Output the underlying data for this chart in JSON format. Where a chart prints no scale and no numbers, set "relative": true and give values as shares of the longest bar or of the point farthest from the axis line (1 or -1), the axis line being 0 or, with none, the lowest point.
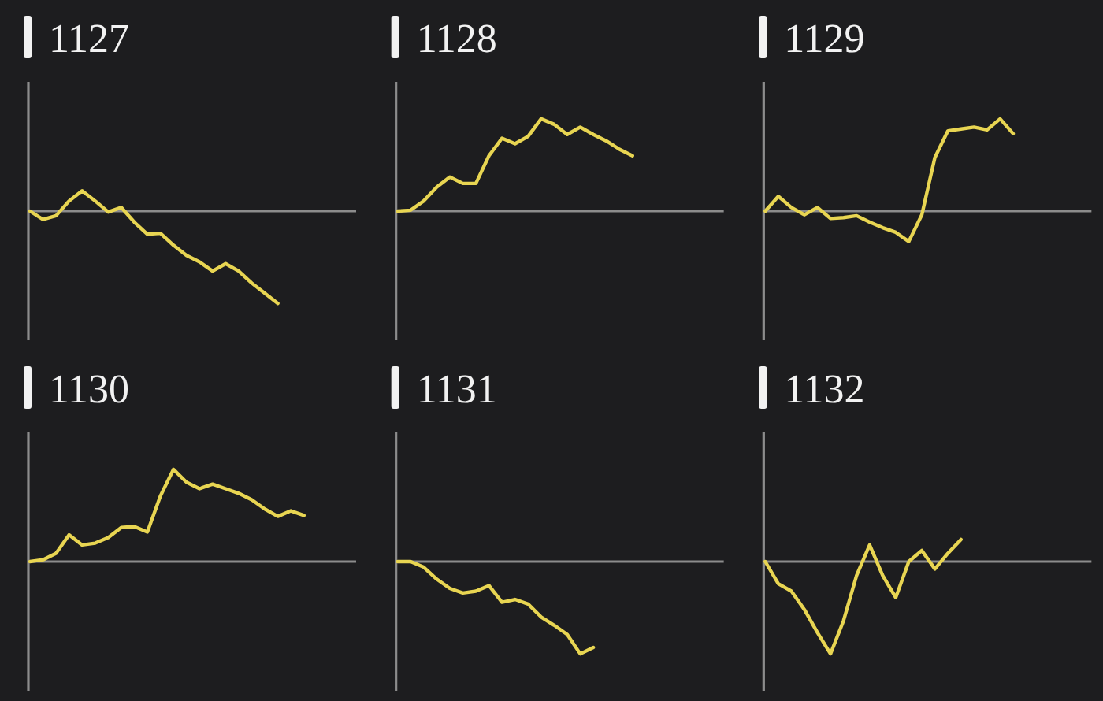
{
  "chart_data": [
    {
      "type": "line",
      "title": "1127",
      "relative": true,
      "categories": [
        null,
        null,
        null,
        null,
        null,
        null,
        null,
        null,
        null,
        null,
        null,
        null,
        null,
        null,
        null,
        null,
        null,
        null,
        null,
        null,
        null,
        null,
        null,
        null,
        null,
        null
      ],
      "color": "#e8d552",
      "values": [
        0,
        -0.09,
        -0.05,
        0.11,
        0.22,
        0.11,
        -0.01,
        0.04,
        -0.12,
        -0.25,
        -0.24,
        -0.37,
        -0.48,
        -0.55,
        -0.65,
        -0.57,
        -0.65,
        -0.78,
        -0.89,
        -1,
        null,
        null,
        null,
        null,
        null,
        null
      ]
    },
    {
      "type": "line",
      "title": "1128",
      "relative": true,
      "categories": [
        null,
        null,
        null,
        null,
        null,
        null,
        null,
        null,
        null,
        null,
        null,
        null,
        null,
        null,
        null,
        null,
        null,
        null,
        null,
        null,
        null,
        null,
        null,
        null,
        null,
        null
      ],
      "color": "#e8d552",
      "values": [
        0,
        0.01,
        0.11,
        0.26,
        0.37,
        0.3,
        0.3,
        0.6,
        0.79,
        0.73,
        0.81,
        1,
        0.94,
        0.83,
        0.91,
        0.83,
        0.76,
        0.67,
        0.6,
        null,
        null,
        null,
        null,
        null,
        null,
        null
      ]
    },
    {
      "type": "line",
      "title": "1129",
      "relative": true,
      "categories": [
        null,
        null,
        null,
        null,
        null,
        null,
        null,
        null,
        null,
        null,
        null,
        null,
        null,
        null,
        null,
        null,
        null,
        null,
        null,
        null,
        null,
        null,
        null,
        null,
        null,
        null
      ],
      "color": "#e8d552",
      "values": [
        0,
        0.16,
        0.04,
        -0.04,
        0.04,
        -0.08,
        -0.07,
        -0.05,
        -0.12,
        -0.18,
        -0.23,
        -0.33,
        -0.04,
        0.58,
        0.87,
        0.89,
        0.91,
        0.88,
        1,
        0.84,
        null,
        null,
        null,
        null,
        null,
        null
      ]
    },
    {
      "type": "line",
      "title": "1130",
      "relative": true,
      "categories": [
        null,
        null,
        null,
        null,
        null,
        null,
        null,
        null,
        null,
        null,
        null,
        null,
        null,
        null,
        null,
        null,
        null,
        null,
        null,
        null,
        null,
        null,
        null,
        null,
        null,
        null
      ],
      "color": "#e8d552",
      "values": [
        0,
        0.02,
        0.09,
        0.29,
        0.18,
        0.2,
        0.26,
        0.37,
        0.38,
        0.32,
        0.71,
        1,
        0.86,
        0.79,
        0.84,
        0.79,
        0.74,
        0.67,
        0.57,
        0.49,
        0.55,
        0.5,
        null,
        null,
        null,
        null
      ]
    },
    {
      "type": "line",
      "title": "1131",
      "relative": true,
      "categories": [
        null,
        null,
        null,
        null,
        null,
        null,
        null,
        null,
        null,
        null,
        null,
        null,
        null,
        null,
        null,
        null,
        null,
        null,
        null,
        null,
        null,
        null,
        null,
        null,
        null,
        null
      ],
      "color": "#e8d552",
      "values": [
        0,
        0,
        -0.06,
        -0.19,
        -0.29,
        -0.34,
        -0.32,
        -0.26,
        -0.44,
        -0.41,
        -0.46,
        -0.6,
        -0.69,
        -0.79,
        -1,
        -0.93,
        null,
        null,
        null,
        null,
        null,
        null,
        null,
        null,
        null,
        null
      ]
    },
    {
      "type": "line",
      "title": "1132",
      "relative": true,
      "categories": [
        null,
        null,
        null,
        null,
        null,
        null,
        null,
        null,
        null,
        null,
        null,
        null,
        null,
        null,
        null,
        null,
        null,
        null,
        null,
        null,
        null,
        null,
        null,
        null,
        null,
        null
      ],
      "color": "#e8d552",
      "values": [
        0,
        -0.24,
        -0.32,
        -0.52,
        -0.77,
        -1,
        -0.64,
        -0.15,
        0.18,
        -0.15,
        -0.39,
        0,
        0.12,
        -0.08,
        0.09,
        0.24,
        null,
        null,
        null,
        null,
        null,
        null,
        null,
        null,
        null,
        null
      ]
    }
  ]
}
